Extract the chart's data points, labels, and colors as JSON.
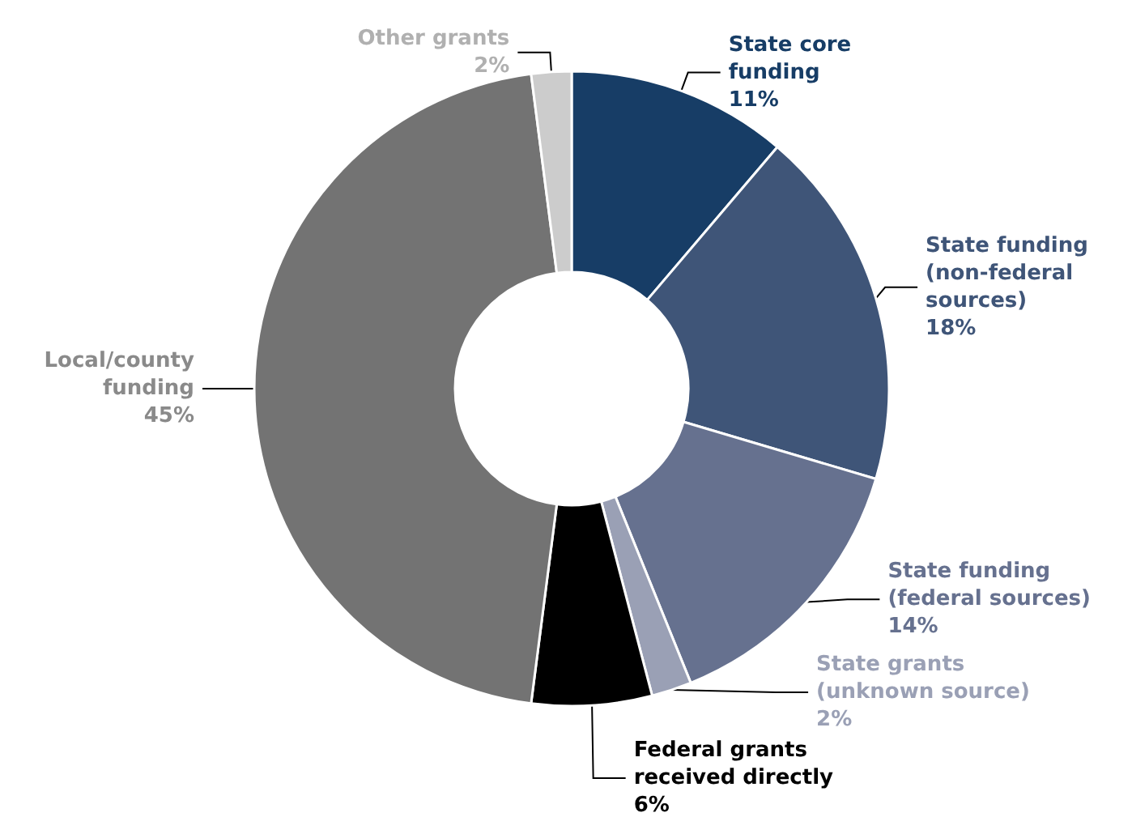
{
  "chart_data": {
    "type": "donut",
    "categories": [
      "State core\nfunding",
      "State funding\n(non-federal\nsources)",
      "State funding\n(federal sources)",
      "State grants\n(unknown source)",
      "Federal grants\nreceived directly",
      "Local/county\nfunding",
      "Other grants"
    ],
    "values": [
      11,
      18,
      14,
      2,
      6,
      45,
      2
    ],
    "value_labels": [
      "11%",
      "18%",
      "14%",
      "2%",
      "6%",
      "45%",
      "2%"
    ],
    "colors": [
      "#173d66",
      "#3f5578",
      "#66718f",
      "#9aa0b5",
      "#000000",
      "#737373",
      "#cccccc"
    ],
    "legend": false
  }
}
